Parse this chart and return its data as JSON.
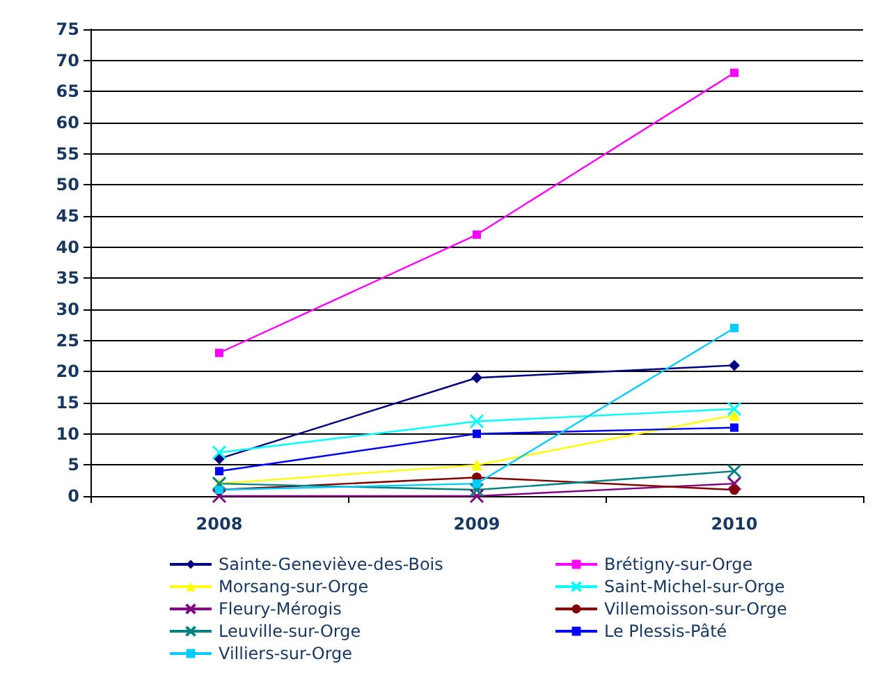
{
  "chart_data": {
    "type": "line",
    "categories": [
      "2008",
      "2009",
      "2010"
    ],
    "ylim": [
      0,
      75
    ],
    "yticks": [
      0,
      5,
      10,
      15,
      20,
      25,
      30,
      35,
      40,
      45,
      50,
      55,
      60,
      65,
      70,
      75
    ],
    "grid": "y",
    "legend": "bottom",
    "series": [
      {
        "name": "Sainte-Geneviève-des-Bois",
        "color": "#000080",
        "marker": "diamond",
        "values": [
          6,
          19,
          21
        ]
      },
      {
        "name": "Brétigny-sur-Orge",
        "color": "#ff00ff",
        "marker": "square",
        "values": [
          23,
          42,
          68
        ]
      },
      {
        "name": "Morsang-sur-Orge",
        "color": "#ffff00",
        "marker": "triangle",
        "values": [
          2,
          5,
          13
        ]
      },
      {
        "name": "Saint-Michel-sur-Orge",
        "color": "#00ffff",
        "marker": "cross",
        "values": [
          7,
          12,
          14
        ]
      },
      {
        "name": "Fleury-Mérogis",
        "color": "#800080",
        "marker": "cross",
        "values": [
          0,
          0,
          2
        ]
      },
      {
        "name": "Villemoisson-sur-Orge",
        "color": "#800000",
        "marker": "circle",
        "values": [
          1,
          3,
          1
        ]
      },
      {
        "name": "Leuville-sur-Orge",
        "color": "#008080",
        "marker": "cross",
        "values": [
          2,
          1,
          4
        ]
      },
      {
        "name": "Le Plessis-Pâté",
        "color": "#0000ff",
        "marker": "square",
        "values": [
          4,
          10,
          11
        ]
      },
      {
        "name": "Villiers-sur-Orge",
        "color": "#00ccff",
        "marker": "square",
        "values": [
          1,
          2,
          27
        ]
      }
    ]
  }
}
